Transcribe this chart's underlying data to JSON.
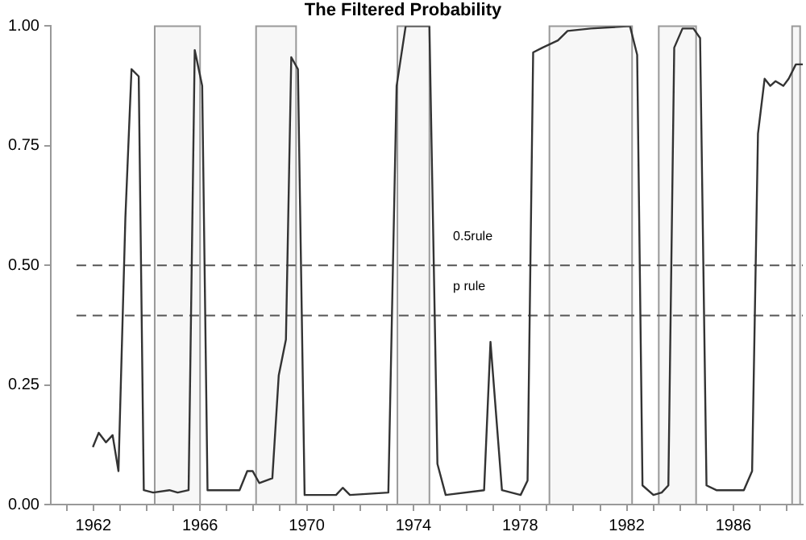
{
  "chart_data": {
    "type": "line",
    "title": "The Filtered Probability",
    "xlim": [
      1960.4,
      1988.6
    ],
    "xticks": [
      {
        "value": 1961,
        "label": null
      },
      1962,
      {
        "value": 1963,
        "label": null
      },
      {
        "value": 1964,
        "label": null
      },
      {
        "value": 1965,
        "label": null
      },
      1966,
      {
        "value": 1967,
        "label": null
      },
      {
        "value": 1968,
        "label": null
      },
      {
        "value": 1969,
        "label": null
      },
      1970,
      {
        "value": 1971,
        "label": null
      },
      {
        "value": 1972,
        "label": null
      },
      {
        "value": 1973,
        "label": null
      },
      1974,
      {
        "value": 1975,
        "label": null
      },
      {
        "value": 1976,
        "label": null
      },
      {
        "value": 1977,
        "label": null
      },
      1978,
      {
        "value": 1979,
        "label": null
      },
      {
        "value": 1980,
        "label": null
      },
      {
        "value": 1981,
        "label": null
      },
      1982,
      {
        "value": 1983,
        "label": null
      },
      {
        "value": 1984,
        "label": null
      },
      {
        "value": 1985,
        "label": null
      },
      1986,
      {
        "value": 1987,
        "label": null
      },
      {
        "value": 1988,
        "label": null
      }
    ],
    "ylim": [
      0,
      1
    ],
    "yticks": [
      {
        "value": 0,
        "label": "0.00"
      },
      {
        "value": 0.25,
        "label": "0.25"
      },
      {
        "value": 0.5,
        "label": "0.50"
      },
      {
        "value": 0.75,
        "label": "0.75"
      },
      {
        "value": 1,
        "label": "1.00"
      }
    ],
    "grid": false,
    "legend": false,
    "marker": "none",
    "line_style": "solid",
    "series": [
      {
        "color": "#333333",
        "x": [
          1961.98,
          1962.2,
          1962.47,
          1962.72,
          1962.94,
          1963.2,
          1963.43,
          1963.7,
          1963.89,
          1964.24,
          1964.85,
          1965.16,
          1965.57,
          1965.8,
          1966.08,
          1966.28,
          1967.48,
          1967.77,
          1967.97,
          1968.22,
          1968.71,
          1968.95,
          1969.22,
          1969.42,
          1969.67,
          1969.92,
          1971.1,
          1971.35,
          1971.62,
          1973.06,
          1973.37,
          1973.71,
          1974.6,
          1974.9,
          1975.21,
          1976.65,
          1976.89,
          1977.32,
          1978.02,
          1978.28,
          1978.49,
          1978.84,
          1979.42,
          1979.78,
          1980.65,
          1982.12,
          1982.39,
          1982.59,
          1983.0,
          1983.31,
          1983.56,
          1983.78,
          1984.09,
          1984.5,
          1984.75,
          1984.99,
          1985.36,
          1986.39,
          1986.7,
          1986.92,
          1987.17,
          1987.38,
          1987.58,
          1987.87,
          1988.07,
          1988.34,
          1988.6
        ],
        "values": [
          0.12,
          0.15,
          0.13,
          0.145,
          0.07,
          0.6,
          0.91,
          0.895,
          0.03,
          0.025,
          0.03,
          0.025,
          0.03,
          0.95,
          0.875,
          0.03,
          0.03,
          0.07,
          0.07,
          0.045,
          0.055,
          0.27,
          0.345,
          0.935,
          0.91,
          0.02,
          0.02,
          0.035,
          0.02,
          0.025,
          0.875,
          1.0,
          1.0,
          0.085,
          0.02,
          0.03,
          0.34,
          0.03,
          0.02,
          0.05,
          0.945,
          0.955,
          0.97,
          0.99,
          0.995,
          1.0,
          0.94,
          0.04,
          0.02,
          0.025,
          0.04,
          0.955,
          0.995,
          0.995,
          0.975,
          0.04,
          0.03,
          0.03,
          0.07,
          0.775,
          0.89,
          0.875,
          0.885,
          0.875,
          0.89,
          0.92,
          0.92
        ]
      }
    ],
    "bands": [
      {
        "axis": "x",
        "from": 1964.3,
        "to": 1966.0,
        "color": "#f7f7f7"
      },
      {
        "axis": "x",
        "from": 1968.1,
        "to": 1969.6,
        "color": "#f7f7f7"
      },
      {
        "axis": "x",
        "from": 1973.4,
        "to": 1974.6,
        "color": "#f7f7f7"
      },
      {
        "axis": "x",
        "from": 1979.1,
        "to": 1982.2,
        "color": "#f7f7f7"
      },
      {
        "axis": "x",
        "from": 1983.2,
        "to": 1984.6,
        "color": "#f7f7f7"
      },
      {
        "axis": "x",
        "from": 1988.2,
        "to": 1988.5,
        "color": "#f7f7f7"
      }
    ],
    "ref_lines": [
      {
        "axis": "y",
        "value": 0.5,
        "label": "0.5rule",
        "color": "#555555",
        "line_style": "dashed"
      },
      {
        "axis": "y",
        "value": 0.395,
        "label": "p rule",
        "color": "#555555",
        "line_style": "dashed"
      }
    ]
  }
}
